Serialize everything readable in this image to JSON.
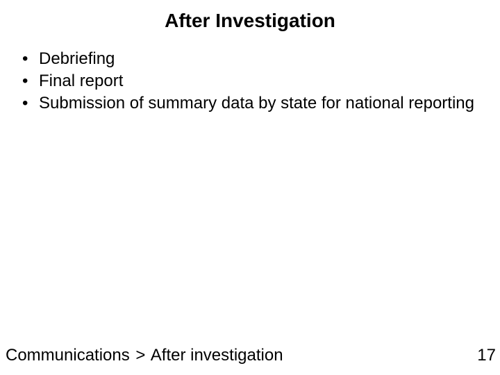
{
  "slide": {
    "title": "After Investigation",
    "bullets": [
      "Debriefing",
      "Final report",
      "Submission of summary data by state for national reporting"
    ],
    "breadcrumb": {
      "parent": "Communications",
      "separator": ">",
      "current": "After investigation"
    },
    "page_number": "17",
    "colors": {
      "background": "#ffffff",
      "text": "#000000"
    },
    "typography": {
      "title_fontsize": 28,
      "body_fontsize": 24,
      "font_family": "Arial"
    }
  }
}
